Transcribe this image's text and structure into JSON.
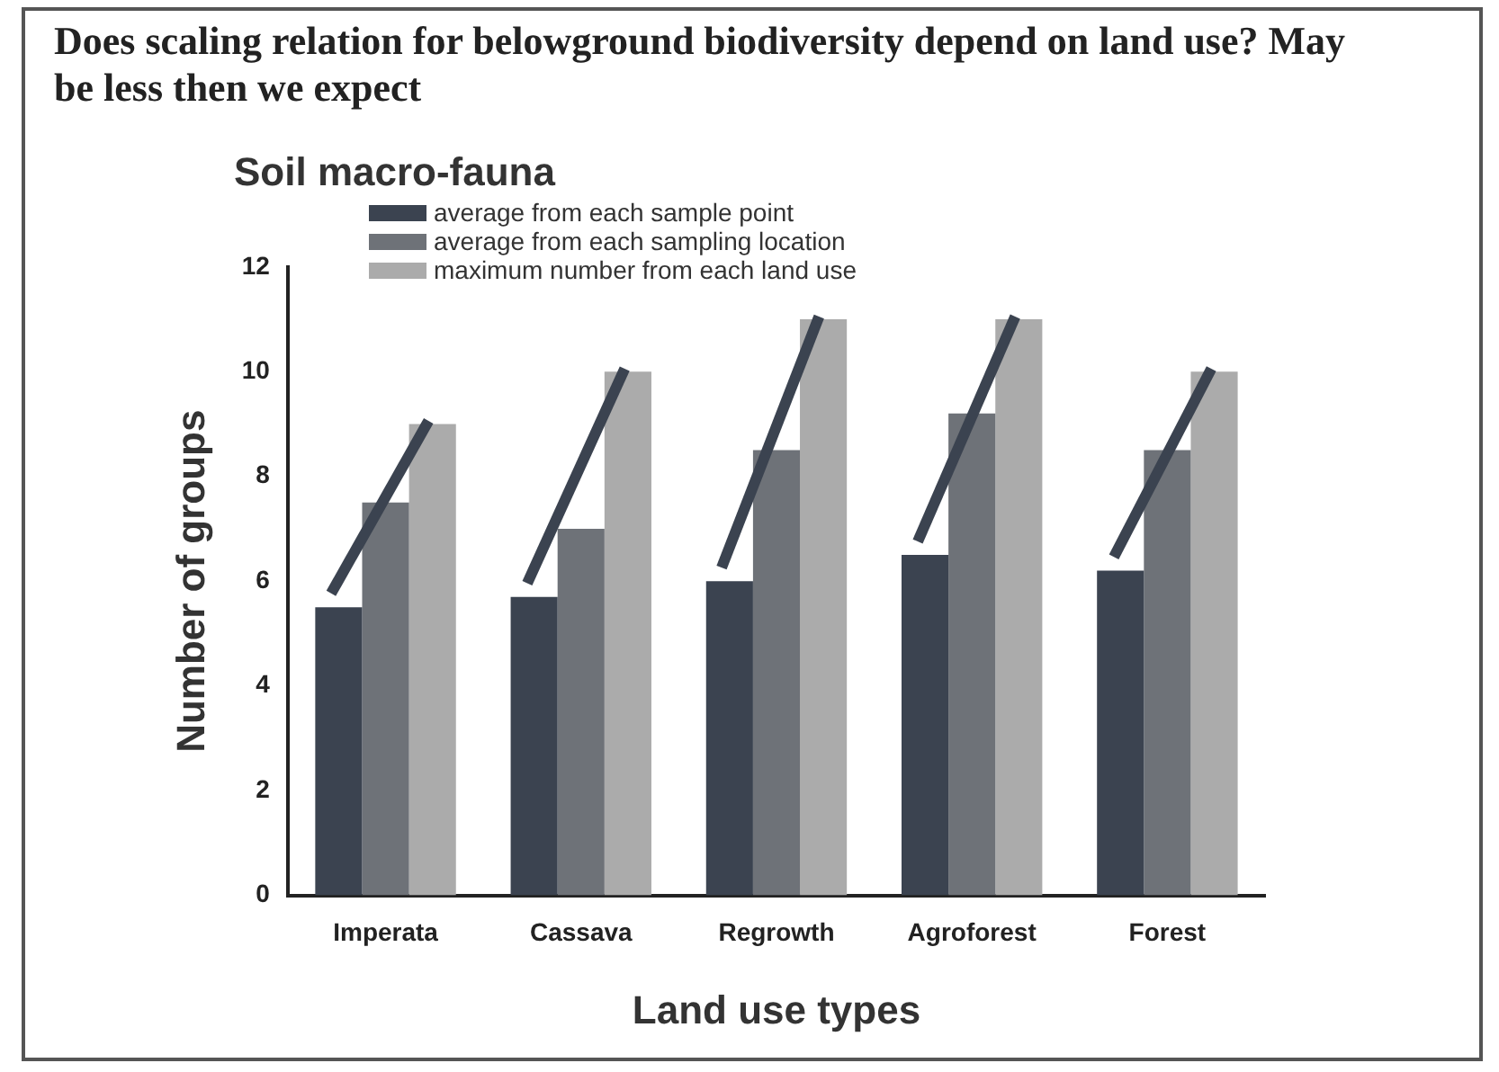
{
  "chart_data": {
    "type": "bar",
    "title": "Does scaling relation for belowground biodiversity depend on land use? May be less then we expect",
    "subtitle": "Soil macro-fauna",
    "xlabel": "Land use types",
    "ylabel": "Number of groups",
    "categories": [
      "Imperata",
      "Cassava",
      "Regrowth",
      "Agroforest",
      "Forest"
    ],
    "series": [
      {
        "name": "average from each sample point",
        "color": "#3b4350",
        "values": [
          5.5,
          5.7,
          6,
          6.5,
          6.2
        ]
      },
      {
        "name": "average from each sampling location",
        "color": "#6e7278",
        "values": [
          7.5,
          7,
          8.5,
          9.2,
          8.5
        ]
      },
      {
        "name": "maximum number from each land use",
        "color": "#ababab",
        "values": [
          9,
          10,
          11,
          11,
          10
        ]
      }
    ],
    "ylim": [
      0,
      12
    ],
    "yticks": [
      0,
      2,
      4,
      6,
      8,
      10,
      12
    ],
    "grid": false,
    "legend": "top left"
  }
}
